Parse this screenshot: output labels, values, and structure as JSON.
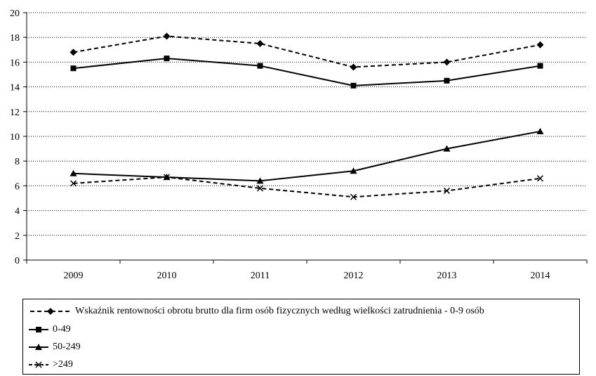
{
  "chart_data": {
    "type": "line",
    "categories": [
      "2009",
      "2010",
      "2011",
      "2012",
      "2013",
      "2014"
    ],
    "ylim": [
      0,
      20
    ],
    "yticks": [
      0,
      2,
      4,
      6,
      8,
      10,
      12,
      14,
      16,
      18,
      20
    ],
    "ytick_labels": [
      "0",
      "2",
      "4",
      "6",
      "8",
      "10",
      "12",
      "14",
      "16",
      "18",
      "20"
    ],
    "grid": "horizontal dotted",
    "legend_position": "bottom",
    "series": [
      {
        "name": "Wskaźnik rentowności obrotu brutto dla  firm osób fizycznych według wielkości zatrudnienia - 0-9 osób",
        "values": [
          16.8,
          18.1,
          17.5,
          15.6,
          16.0,
          17.4
        ],
        "line": "dashed",
        "marker": "diamond"
      },
      {
        "name": "0-49",
        "values": [
          15.5,
          16.3,
          15.7,
          14.1,
          14.5,
          15.7
        ],
        "line": "solid",
        "marker": "square"
      },
      {
        "name": "50-249",
        "values": [
          7.0,
          6.7,
          6.4,
          7.2,
          9.0,
          10.4
        ],
        "line": "solid",
        "marker": "triangle"
      },
      {
        "name": ">249",
        "values": [
          6.2,
          6.7,
          5.8,
          5.1,
          5.6,
          6.6
        ],
        "line": "dashed",
        "marker": "x"
      }
    ]
  }
}
